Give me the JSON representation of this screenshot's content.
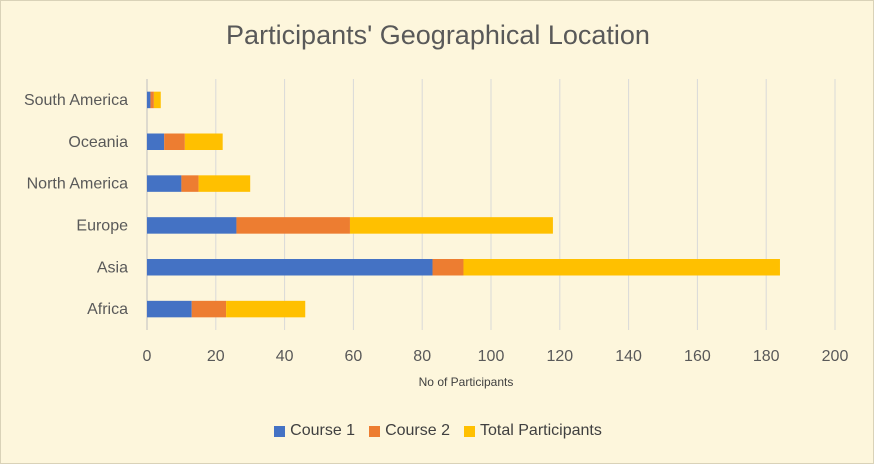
{
  "chart_data": {
    "type": "bar",
    "orientation": "horizontal",
    "stacked": true,
    "title": "Participants' Geographical Location",
    "xlabel": "No of Participants",
    "ylabel": "",
    "categories": [
      "Africa",
      "Asia",
      "Europe",
      "North America",
      "Oceania",
      "South America"
    ],
    "series": [
      {
        "name": "Course 1",
        "color": "#4472c4",
        "values": [
          13,
          83,
          26,
          10,
          5,
          1
        ]
      },
      {
        "name": "Course 2",
        "color": "#ed7d31",
        "values": [
          10,
          9,
          33,
          5,
          6,
          1
        ]
      },
      {
        "name": "Total Participants",
        "color": "#ffc000",
        "values": [
          23,
          92,
          59,
          15,
          11,
          2
        ]
      }
    ],
    "xlim": [
      0,
      200
    ],
    "xticks": [
      "0",
      "20",
      "40",
      "60",
      "80",
      "100",
      "120",
      "140",
      "160",
      "180",
      "200"
    ],
    "grid": true,
    "legend_position": "bottom"
  }
}
